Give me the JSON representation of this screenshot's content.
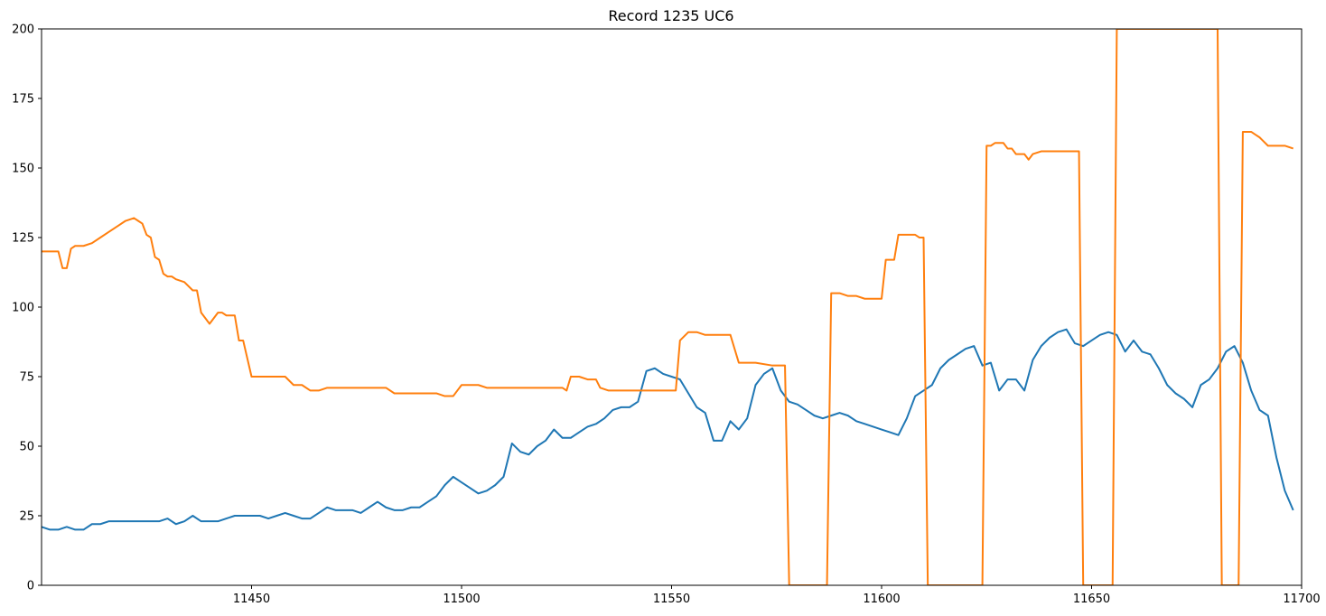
{
  "chart_data": {
    "type": "line",
    "title": "Record 1235 UC6",
    "xlabel": "",
    "ylabel": "",
    "xlim": [
      11400,
      11700
    ],
    "ylim": [
      0,
      200
    ],
    "x_ticks": [
      11450,
      11500,
      11550,
      11600,
      11650,
      11700
    ],
    "y_ticks": [
      0,
      25,
      50,
      75,
      100,
      125,
      150,
      175,
      200
    ],
    "grid": false,
    "legend": "none",
    "series": [
      {
        "color": "#1f77b4",
        "x": [
          11400,
          11402,
          11404,
          11406,
          11408,
          11410,
          11412,
          11414,
          11416,
          11418,
          11420,
          11422,
          11424,
          11426,
          11428,
          11430,
          11432,
          11434,
          11436,
          11438,
          11440,
          11442,
          11444,
          11446,
          11448,
          11450,
          11452,
          11454,
          11456,
          11458,
          11460,
          11462,
          11464,
          11466,
          11468,
          11470,
          11472,
          11474,
          11476,
          11478,
          11480,
          11482,
          11484,
          11486,
          11488,
          11490,
          11492,
          11494,
          11496,
          11498,
          11500,
          11502,
          11504,
          11506,
          11508,
          11510,
          11512,
          11514,
          11516,
          11518,
          11520,
          11522,
          11524,
          11526,
          11528,
          11530,
          11532,
          11534,
          11536,
          11538,
          11540,
          11542,
          11544,
          11546,
          11548,
          11550,
          11552,
          11554,
          11556,
          11558,
          11560,
          11562,
          11564,
          11566,
          11568,
          11570,
          11572,
          11574,
          11576,
          11578,
          11580,
          11582,
          11584,
          11586,
          11588,
          11590,
          11592,
          11594,
          11596,
          11598,
          11600,
          11602,
          11604,
          11606,
          11608,
          11610,
          11612,
          11614,
          11616,
          11618,
          11620,
          11622,
          11624,
          11626,
          11628,
          11630,
          11632,
          11634,
          11636,
          11638,
          11640,
          11642,
          11644,
          11646,
          11648,
          11650,
          11652,
          11654,
          11656,
          11658,
          11660,
          11662,
          11664,
          11666,
          11668,
          11670,
          11672,
          11674,
          11676,
          11678,
          11680,
          11682,
          11684,
          11686,
          11688,
          11690,
          11692,
          11694,
          11696,
          11698
        ],
        "y": [
          21,
          20,
          20,
          21,
          20,
          20,
          22,
          22,
          23,
          23,
          23,
          23,
          23,
          23,
          23,
          24,
          22,
          23,
          25,
          23,
          23,
          23,
          24,
          25,
          25,
          25,
          25,
          24,
          25,
          26,
          25,
          24,
          24,
          26,
          28,
          27,
          27,
          27,
          26,
          28,
          30,
          28,
          27,
          27,
          28,
          28,
          30,
          32,
          36,
          39,
          37,
          35,
          33,
          34,
          36,
          39,
          51,
          48,
          47,
          50,
          52,
          56,
          53,
          53,
          55,
          57,
          58,
          60,
          63,
          64,
          64,
          66,
          77,
          78,
          76,
          75,
          74,
          69,
          64,
          62,
          52,
          52,
          59,
          56,
          60,
          72,
          76,
          78,
          70,
          66,
          65,
          63,
          61,
          60,
          61,
          62,
          61,
          59,
          58,
          57,
          56,
          55,
          54,
          60,
          68,
          70,
          72,
          78,
          81,
          83,
          85,
          86,
          79,
          80,
          70,
          74,
          74,
          70,
          81,
          86,
          89,
          91,
          92,
          87,
          86,
          88,
          90,
          91,
          90,
          84,
          88,
          84,
          83,
          78,
          72,
          69,
          67,
          64,
          72,
          74,
          78,
          84,
          86,
          80,
          70,
          63,
          61,
          46,
          34,
          27
        ]
      },
      {
        "color": "#ff7f0e",
        "x": [
          11400,
          11403,
          11404,
          11405,
          11406,
          11407,
          11408,
          11410,
          11412,
          11414,
          11416,
          11418,
          11420,
          11422,
          11423,
          11424,
          11425,
          11426,
          11427,
          11428,
          11429,
          11430,
          11431,
          11432,
          11434,
          11436,
          11437,
          11438,
          11440,
          11442,
          11443,
          11444,
          11445,
          11446,
          11447,
          11448,
          11450,
          11451,
          11452,
          11454,
          11456,
          11458,
          11460,
          11462,
          11464,
          11466,
          11468,
          11470,
          11472,
          11474,
          11476,
          11478,
          11480,
          11482,
          11484,
          11486,
          11488,
          11490,
          11492,
          11494,
          11496,
          11498,
          11500,
          11502,
          11504,
          11506,
          11508,
          11510,
          11515,
          11520,
          11524,
          11525,
          11526,
          11527,
          11528,
          11530,
          11532,
          11533,
          11535,
          11540,
          11545,
          11548,
          11549,
          11550,
          11551,
          11552,
          11554,
          11556,
          11558,
          11560,
          11562,
          11563,
          11564,
          11566,
          11570,
          11574,
          11576,
          11577,
          11578,
          11587,
          11588,
          11590,
          11592,
          11594,
          11596,
          11598,
          11600,
          11601,
          11602,
          11603,
          11604,
          11606,
          11608,
          11609,
          11610,
          11611,
          11624,
          11625,
          11626,
          11627,
          11628,
          11629,
          11630,
          11631,
          11632,
          11633,
          11634,
          11635,
          11636,
          11638,
          11640,
          11644,
          11646,
          11647,
          11648,
          11655,
          11656,
          11680,
          11681,
          11685,
          11686,
          11687,
          11688,
          11689,
          11690,
          11692,
          11694,
          11696,
          11698
        ],
        "y": [
          120,
          120,
          120,
          114,
          114,
          121,
          122,
          122,
          123,
          125,
          127,
          129,
          131,
          132,
          131,
          130,
          126,
          125,
          118,
          117,
          112,
          111,
          111,
          110,
          109,
          106,
          106,
          98,
          94,
          98,
          98,
          97,
          97,
          97,
          88,
          88,
          75,
          75,
          75,
          75,
          75,
          75,
          72,
          72,
          70,
          70,
          71,
          71,
          71,
          71,
          71,
          71,
          71,
          71,
          69,
          69,
          69,
          69,
          69,
          69,
          68,
          68,
          72,
          72,
          72,
          71,
          71,
          71,
          71,
          71,
          71,
          70,
          75,
          75,
          75,
          74,
          74,
          71,
          70,
          70,
          70,
          70,
          70,
          70,
          70,
          88,
          91,
          91,
          90,
          90,
          90,
          90,
          90,
          80,
          80,
          79,
          79,
          79,
          0,
          0,
          105,
          105,
          104,
          104,
          103,
          103,
          103,
          117,
          117,
          117,
          126,
          126,
          126,
          125,
          125,
          0,
          0,
          158,
          158,
          159,
          159,
          159,
          157,
          157,
          155,
          155,
          155,
          153,
          155,
          156,
          156,
          156,
          156,
          156,
          0,
          0,
          200,
          200,
          0,
          0,
          163,
          163,
          163,
          162,
          161,
          158,
          158,
          158,
          157
        ]
      }
    ]
  }
}
